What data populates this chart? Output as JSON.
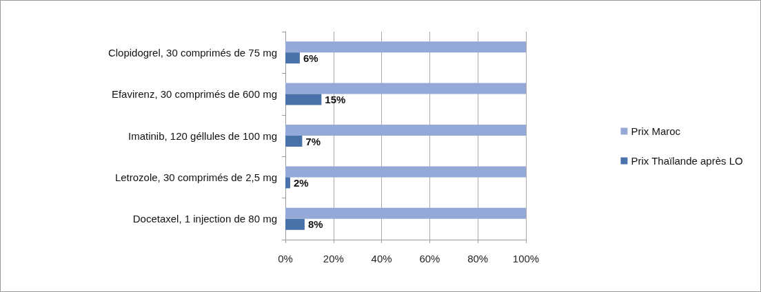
{
  "chart_data": {
    "type": "bar",
    "orientation": "horizontal",
    "categories": [
      "Clopidogrel, 30 comprimés de 75 mg",
      "Efavirenz, 30 comprimés de 600 mg",
      "Imatinib, 120 géllules de 100 mg",
      "Letrozole, 30 comprimés de 2,5 mg",
      "Docetaxel, 1 injection de 80 mg"
    ],
    "series": [
      {
        "name": "Prix Maroc",
        "color": "#95a9d9",
        "values": [
          100,
          100,
          100,
          100,
          100
        ]
      },
      {
        "name": "Prix Thaïlande après LO",
        "color": "#4a72aa",
        "values": [
          6,
          15,
          7,
          2,
          8
        ],
        "value_labels": [
          "6%",
          "15%",
          "7%",
          "2%",
          "8%"
        ]
      }
    ],
    "xlim": [
      0,
      100
    ],
    "xticks": [
      {
        "value": 0,
        "label": "0%"
      },
      {
        "value": 20,
        "label": "20%"
      },
      {
        "value": 40,
        "label": "40%"
      },
      {
        "value": 60,
        "label": "60%"
      },
      {
        "value": 80,
        "label": "80%"
      },
      {
        "value": 100,
        "label": "100%"
      }
    ],
    "grid": "x",
    "legend": "right"
  }
}
